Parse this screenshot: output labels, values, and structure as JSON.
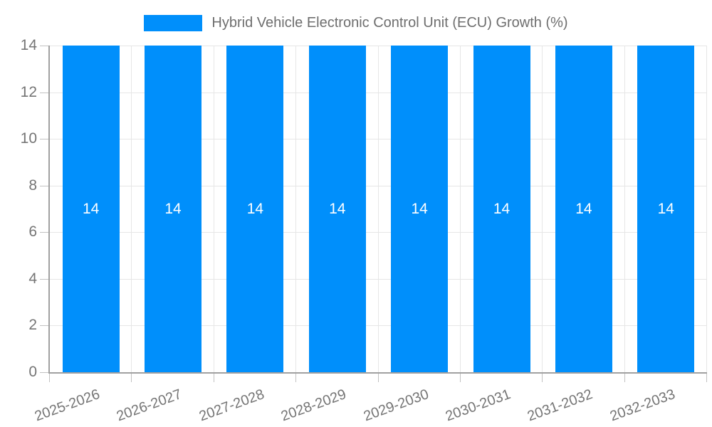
{
  "chart_data": {
    "type": "bar",
    "title": "Hybrid Vehicle Electronic Control Unit (ECU) Growth (%)",
    "categories": [
      "2025-2026",
      "2026-2027",
      "2027-2028",
      "2028-2029",
      "2029-2030",
      "2030-2031",
      "2031-2032",
      "2032-2033"
    ],
    "series": [
      {
        "name": "Hybrid Vehicle Electronic Control Unit (ECU) Growth (%)",
        "values": [
          14,
          14,
          14,
          14,
          14,
          14,
          14,
          14
        ]
      }
    ],
    "bar_labels": [
      "14",
      "14",
      "14",
      "14",
      "14",
      "14",
      "14",
      "14"
    ],
    "xlabel": "",
    "ylabel": "",
    "ylim": [
      0,
      14
    ],
    "yticks": [
      0,
      2,
      4,
      6,
      8,
      10,
      12,
      14
    ],
    "grid": true,
    "legend_position": "top",
    "colors": {
      "bar": "#008FFB",
      "axis_line": "#a0a0a0",
      "tick_mark": "#c2c2c2",
      "gridline": "#e6e6e6",
      "tick_label": "#757575",
      "legend_text": "#6e6e6e",
      "bar_value_text": "#ffffff",
      "background": "#ffffff"
    }
  }
}
